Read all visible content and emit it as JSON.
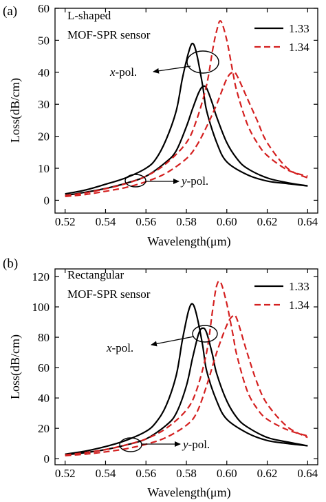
{
  "chart_data": [
    {
      "type": "line",
      "panel_label": "(a)",
      "sensor_label_line1": "L-shaped",
      "sensor_label_line2": "MOF-SPR sensor",
      "xlabel": "Wavelength(μm)",
      "ylabel": "Loss(dB/cm)",
      "xlim": [
        0.515,
        0.645
      ],
      "ylim": [
        -4,
        60
      ],
      "xticks": [
        0.52,
        0.54,
        0.56,
        0.58,
        0.6,
        0.62,
        0.64
      ],
      "xtick_labels": [
        "0.52",
        "0.54",
        "0.56",
        "0.58",
        "0.60",
        "0.62",
        "0.64"
      ],
      "yticks": [
        0,
        10,
        20,
        30,
        40,
        50,
        60
      ],
      "ytick_labels": [
        "0",
        "10",
        "20",
        "30",
        "40",
        "50",
        "60"
      ],
      "legend_position": "top-right",
      "legend": [
        {
          "label": "1.33",
          "color": "#000000",
          "dash": "solid"
        },
        {
          "label": "1.34",
          "color": "#d42020",
          "dash": "dashed"
        }
      ],
      "annotations": {
        "x_pol": "x-pol.",
        "y_pol": "y-pol."
      },
      "series": [
        {
          "name": "1.33",
          "polarization": "x-pol.",
          "color": "#000000",
          "dash": "solid",
          "x": [
            0.52,
            0.53,
            0.54,
            0.55,
            0.56,
            0.565,
            0.57,
            0.575,
            0.578,
            0.581,
            0.583,
            0.585,
            0.588,
            0.59,
            0.595,
            0.6,
            0.61,
            0.62,
            0.63,
            0.64
          ],
          "y": [
            2,
            3.2,
            5,
            7,
            10,
            13,
            19,
            28,
            38,
            46,
            49,
            46,
            36,
            28,
            18,
            12,
            8,
            6,
            5.2,
            4.5
          ]
        },
        {
          "name": "1.33",
          "polarization": "y-pol.",
          "color": "#000000",
          "dash": "solid",
          "x": [
            0.52,
            0.53,
            0.54,
            0.55,
            0.56,
            0.57,
            0.575,
            0.58,
            0.583,
            0.586,
            0.588,
            0.59,
            0.593,
            0.595,
            0.6,
            0.605,
            0.61,
            0.62,
            0.63,
            0.64
          ],
          "y": [
            1.5,
            2.5,
            3.7,
            5.3,
            7.5,
            12,
            15.5,
            23,
            28.5,
            33.5,
            35.5,
            35,
            30,
            26,
            18,
            13,
            10,
            7,
            5.5,
            4.5
          ]
        },
        {
          "name": "1.34",
          "polarization": "x-pol.",
          "color": "#d42020",
          "dash": "dashed",
          "x": [
            0.52,
            0.53,
            0.54,
            0.55,
            0.56,
            0.57,
            0.58,
            0.585,
            0.59,
            0.593,
            0.595,
            0.597,
            0.6,
            0.603,
            0.605,
            0.61,
            0.615,
            0.62,
            0.63,
            0.64
          ],
          "y": [
            1.5,
            2.3,
            3.6,
            5.2,
            7.5,
            11.5,
            18,
            25,
            36,
            47,
            53,
            56,
            50,
            40,
            34,
            24,
            18,
            14,
            9.5,
            7.5
          ]
        },
        {
          "name": "1.34",
          "polarization": "y-pol.",
          "color": "#d42020",
          "dash": "dashed",
          "x": [
            0.52,
            0.53,
            0.54,
            0.55,
            0.56,
            0.57,
            0.58,
            0.585,
            0.59,
            0.595,
            0.6,
            0.603,
            0.605,
            0.61,
            0.615,
            0.62,
            0.63,
            0.64
          ],
          "y": [
            1.2,
            1.8,
            2.8,
            4,
            5.8,
            8.5,
            13,
            17,
            23,
            30,
            38,
            40,
            39,
            32,
            25,
            18,
            10,
            7
          ]
        }
      ]
    },
    {
      "type": "line",
      "panel_label": "(b)",
      "sensor_label_line1": "Rectangular",
      "sensor_label_line2": "MOF-SPR sensor",
      "xlabel": "Wavelength(μm)",
      "ylabel": "Loss(dB/cm)",
      "xlim": [
        0.515,
        0.645
      ],
      "ylim": [
        -4,
        125
      ],
      "xticks": [
        0.52,
        0.54,
        0.56,
        0.58,
        0.6,
        0.62,
        0.64
      ],
      "xtick_labels": [
        "0.52",
        "0.54",
        "0.56",
        "0.58",
        "0.60",
        "0.62",
        "0.64"
      ],
      "yticks": [
        0,
        20,
        40,
        60,
        80,
        100,
        120
      ],
      "ytick_labels": [
        "0",
        "20",
        "40",
        "60",
        "80",
        "100",
        "120"
      ],
      "legend_position": "top-right",
      "legend": [
        {
          "label": "1.33",
          "color": "#000000",
          "dash": "solid"
        },
        {
          "label": "1.34",
          "color": "#d42020",
          "dash": "dashed"
        }
      ],
      "annotations": {
        "x_pol": "x-pol.",
        "y_pol": "y-pol."
      },
      "series": [
        {
          "name": "1.33",
          "polarization": "x-pol.",
          "color": "#000000",
          "dash": "solid",
          "x": [
            0.52,
            0.53,
            0.54,
            0.55,
            0.56,
            0.565,
            0.57,
            0.575,
            0.578,
            0.581,
            0.583,
            0.585,
            0.588,
            0.59,
            0.595,
            0.6,
            0.61,
            0.62,
            0.63,
            0.64
          ],
          "y": [
            3,
            5,
            8,
            12,
            18,
            24,
            35,
            55,
            78,
            97,
            102,
            95,
            75,
            58,
            38,
            26,
            17,
            12,
            10,
            8.5
          ]
        },
        {
          "name": "1.33",
          "polarization": "y-pol.",
          "color": "#000000",
          "dash": "solid",
          "x": [
            0.52,
            0.53,
            0.54,
            0.55,
            0.56,
            0.57,
            0.575,
            0.58,
            0.583,
            0.586,
            0.588,
            0.59,
            0.593,
            0.595,
            0.6,
            0.605,
            0.61,
            0.62,
            0.63,
            0.64
          ],
          "y": [
            2.5,
            4,
            6,
            9,
            13,
            22,
            30,
            48,
            66,
            82,
            86,
            83,
            68,
            56,
            38,
            27,
            21,
            14,
            11,
            8.5
          ]
        },
        {
          "name": "1.34",
          "polarization": "x-pol.",
          "color": "#d42020",
          "dash": "dashed",
          "x": [
            0.52,
            0.53,
            0.54,
            0.55,
            0.56,
            0.57,
            0.58,
            0.585,
            0.59,
            0.593,
            0.595,
            0.597,
            0.6,
            0.603,
            0.605,
            0.61,
            0.615,
            0.62,
            0.63,
            0.64
          ],
          "y": [
            2.5,
            4,
            6,
            9,
            13,
            20,
            32,
            45,
            70,
            98,
            114,
            116,
            102,
            82,
            68,
            45,
            33,
            26,
            19,
            15
          ]
        },
        {
          "name": "1.34",
          "polarization": "y-pol.",
          "color": "#d42020",
          "dash": "dashed",
          "x": [
            0.52,
            0.53,
            0.54,
            0.55,
            0.56,
            0.57,
            0.58,
            0.585,
            0.59,
            0.595,
            0.6,
            0.603,
            0.605,
            0.61,
            0.615,
            0.62,
            0.63,
            0.64
          ],
          "y": [
            2,
            3,
            4.5,
            6.5,
            9.5,
            14,
            22,
            30,
            48,
            70,
            88,
            94,
            92,
            70,
            50,
            36,
            21,
            14
          ]
        }
      ]
    }
  ]
}
